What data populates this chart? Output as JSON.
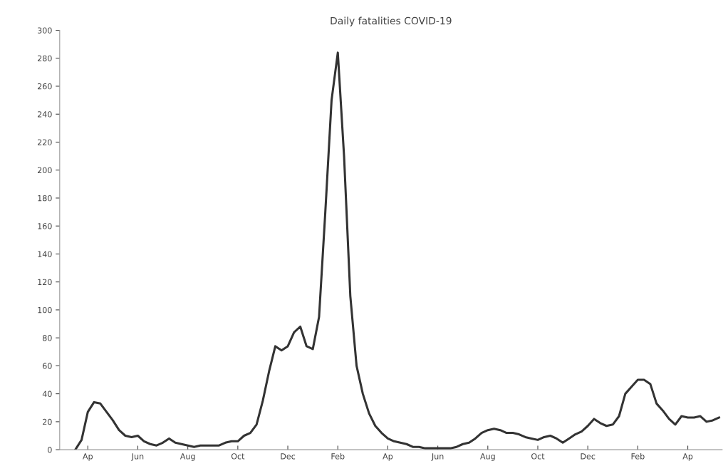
{
  "chart_data": {
    "type": "line",
    "title": "Daily fatalities COVID-19",
    "categories": [
      null,
      null,
      "Ap",
      null,
      null,
      null,
      null,
      null,
      null,
      null,
      "Jun",
      null,
      null,
      null,
      null,
      null,
      null,
      null,
      "Aug",
      null,
      null,
      null,
      null,
      null,
      null,
      null,
      "Oct",
      null,
      null,
      null,
      null,
      null,
      null,
      null,
      "Dec",
      null,
      null,
      null,
      null,
      null,
      null,
      null,
      "Feb",
      null,
      null,
      null,
      null,
      null,
      null,
      null,
      "Ap",
      null,
      null,
      null,
      null,
      null,
      null,
      null,
      "Jun",
      null,
      null,
      null,
      null,
      null,
      null,
      null,
      "Aug",
      null,
      null,
      null,
      null,
      null,
      null,
      null,
      "Oct",
      null,
      null,
      null,
      null,
      null,
      null,
      null,
      "Dec",
      null,
      null,
      null,
      null,
      null,
      null,
      null,
      "Feb",
      null,
      null,
      null,
      null,
      null,
      null,
      null,
      "Ap",
      null,
      null,
      null,
      null,
      null
    ],
    "values": [
      0,
      7,
      27,
      34,
      33,
      27,
      21,
      14,
      10,
      9,
      10,
      6,
      4,
      3,
      5,
      8,
      5,
      4,
      3,
      2,
      3,
      3,
      3,
      3,
      5,
      6,
      6,
      10,
      12,
      18,
      35,
      56,
      74,
      71,
      74,
      84,
      88,
      74,
      72,
      95,
      170,
      250,
      284,
      210,
      110,
      60,
      40,
      26,
      17,
      12,
      8,
      6,
      5,
      4,
      2,
      2,
      1,
      1,
      1,
      1,
      1,
      2,
      4,
      5,
      8,
      12,
      14,
      15,
      14,
      12,
      12,
      11,
      9,
      8,
      7,
      9,
      10,
      8,
      5,
      8,
      11,
      13,
      17,
      22,
      19,
      17,
      18,
      24,
      40,
      45,
      50,
      50,
      47,
      33,
      28,
      22,
      18,
      24,
      23,
      23,
      24,
      20,
      21,
      23
    ],
    "color": "#333333",
    "ylim": [
      0,
      300
    ],
    "yticks": [
      0,
      20,
      40,
      60,
      80,
      100,
      120,
      140,
      160,
      180,
      200,
      220,
      240,
      260,
      280,
      300
    ],
    "grid": false,
    "legend": false,
    "marker": "none",
    "line_style": "solid"
  }
}
